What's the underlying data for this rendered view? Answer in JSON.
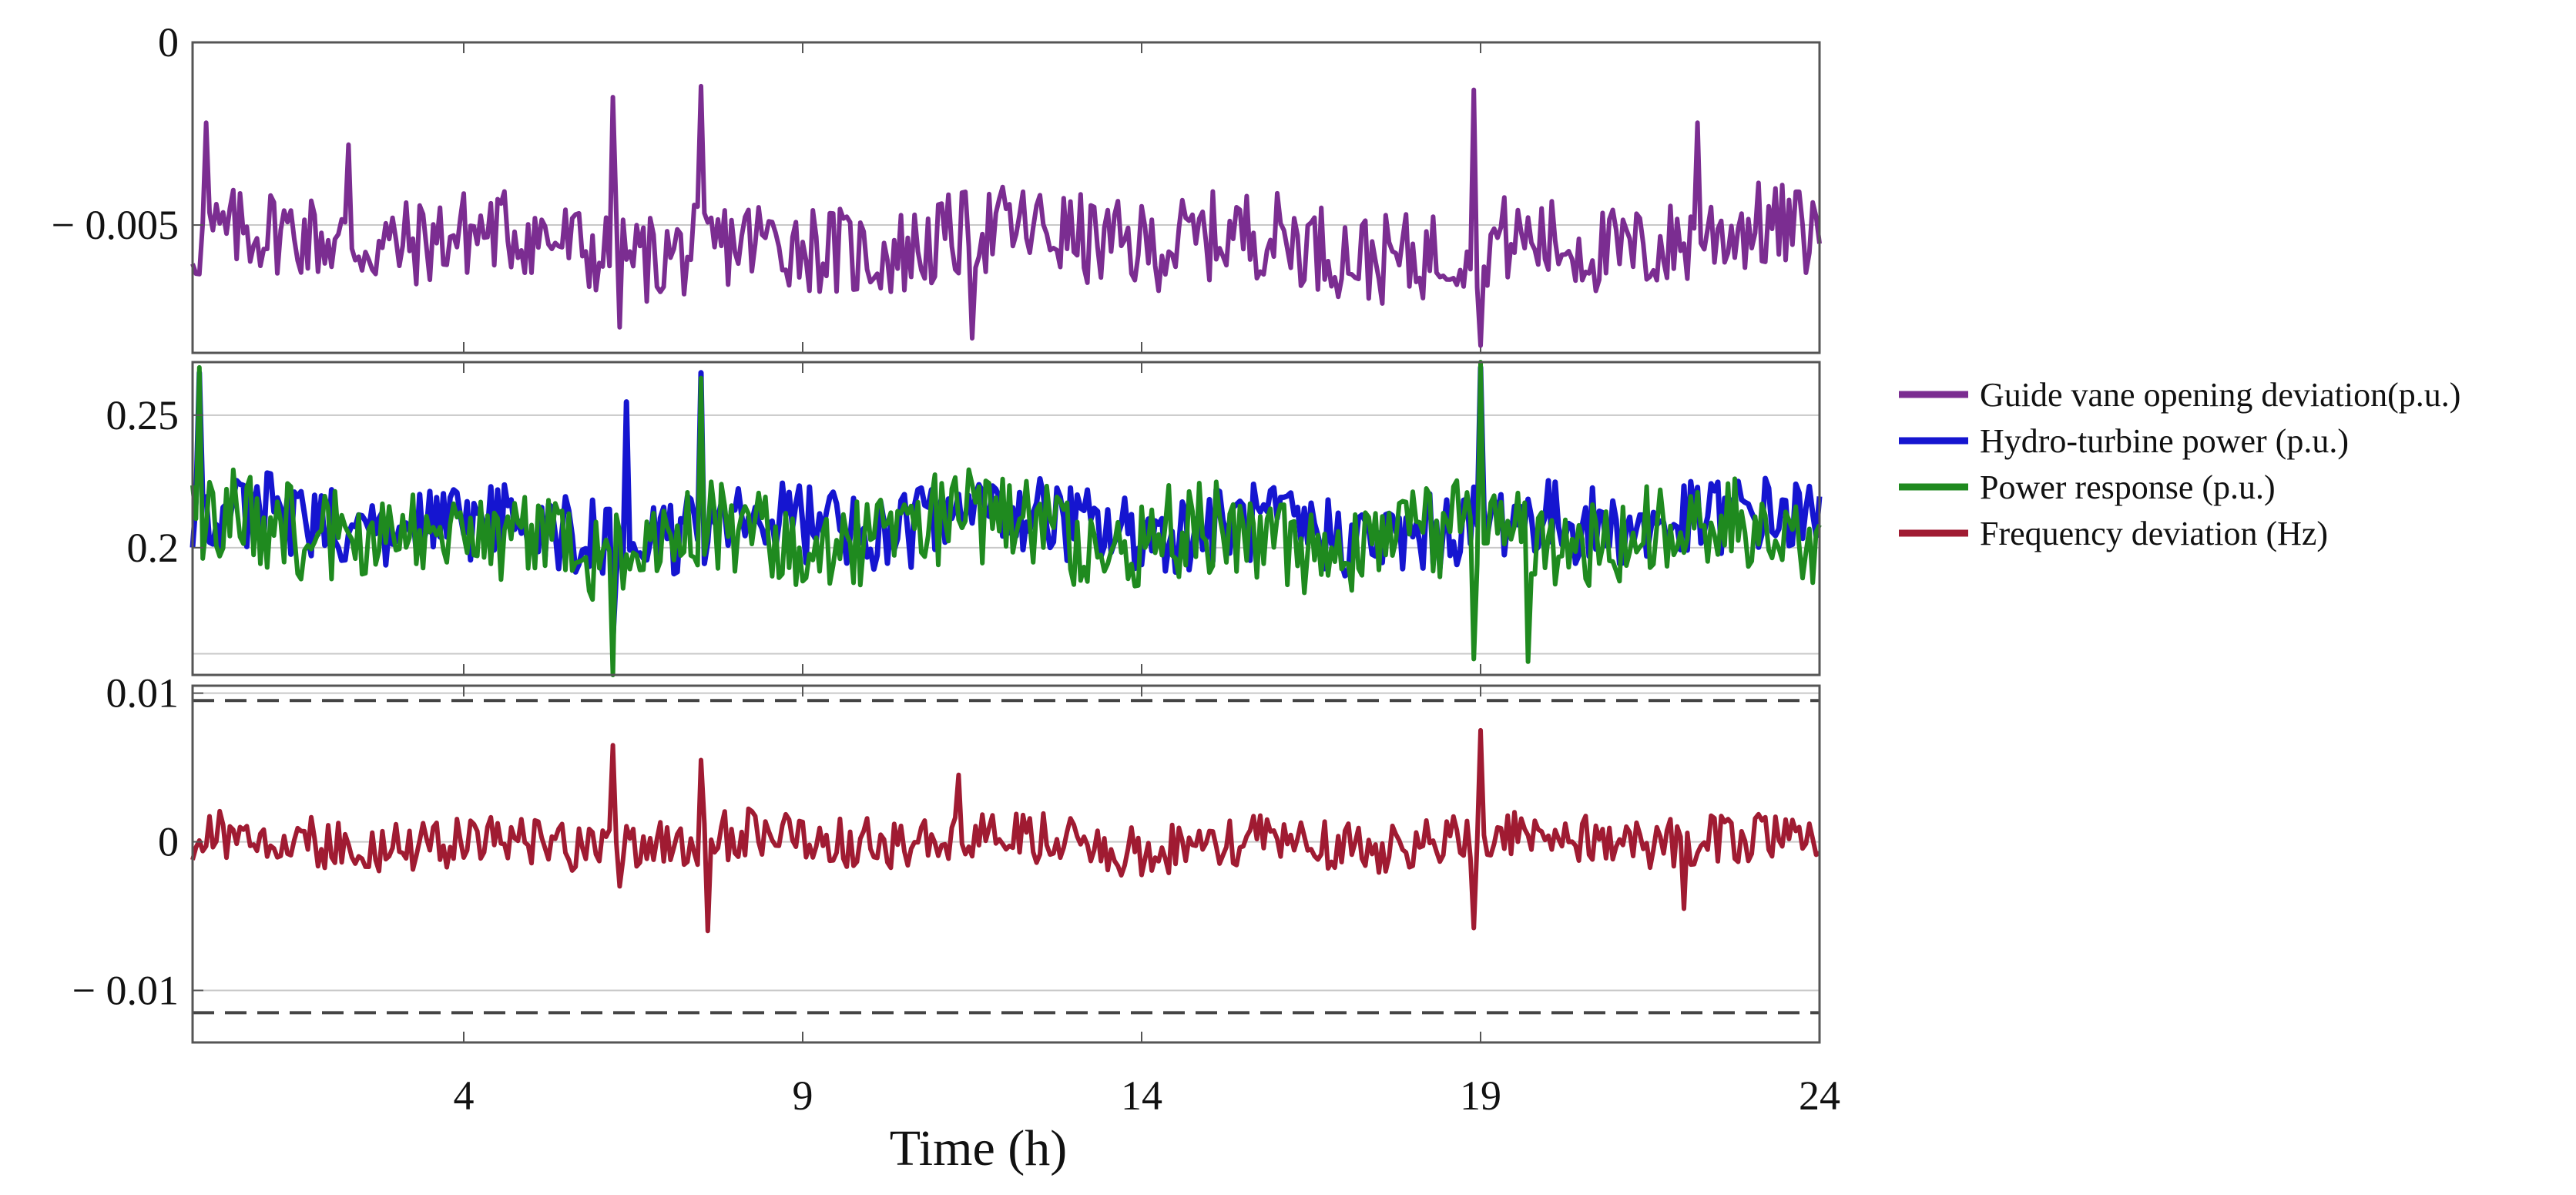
{
  "chart_data": {
    "type": "line",
    "xlabel": "Time (h)",
    "xlim": [
      0,
      24
    ],
    "x_ticks": [
      4,
      9,
      14,
      19,
      24
    ],
    "legend": {
      "placement": "right",
      "entries": [
        {
          "name": "Guide vane opening deviation(p.u.)",
          "color": "#7B2D91"
        },
        {
          "name": "Hydro-turbine power (p.u.)",
          "color": "#1515D0"
        },
        {
          "name": "Power response (p.u.)",
          "color": "#1F8A1F"
        },
        {
          "name": "Frequency deviation (Hz)",
          "color": "#A01B32"
        }
      ]
    },
    "panels": [
      {
        "id": "guide-vane",
        "ylim": [
          -0.0085,
          0.0
        ],
        "y_ticks": [
          {
            "value": 0,
            "label": "0"
          },
          {
            "value": -0.005,
            "label": "− 0.005"
          }
        ],
        "gridlines": [
          -0.005
        ],
        "series": [
          {
            "name": "Guide vane opening deviation(p.u.)",
            "color": "#7B2D91",
            "baseline": -0.0055,
            "spread": 0.0013,
            "spikes": [
              [
                0.2,
                -0.0022
              ],
              [
                2.3,
                -0.0028
              ],
              [
                6.2,
                -0.0015
              ],
              [
                6.3,
                -0.0078
              ],
              [
                7.5,
                -0.0012
              ],
              [
                11.5,
                -0.0081
              ],
              [
                18.9,
                -0.0013
              ],
              [
                19.0,
                -0.0083
              ],
              [
                22.2,
                -0.0022
              ]
            ]
          }
        ]
      },
      {
        "id": "power",
        "ylim": [
          0.152,
          0.27
        ],
        "y_ticks": [
          {
            "value": 0.25,
            "label": "0.25"
          },
          {
            "value": 0.2,
            "label": "0.2"
          }
        ],
        "gridlines": [
          0.25,
          0.2,
          0.16
        ],
        "series": [
          {
            "name": "Hydro-turbine power (p.u.)",
            "color": "#1515D0",
            "baseline": 0.208,
            "spread": 0.016,
            "spikes": [
              [
                0.1,
                0.266
              ],
              [
                6.4,
                0.255
              ],
              [
                7.5,
                0.266
              ],
              [
                19.0,
                0.268
              ],
              [
                6.2,
                0.165
              ]
            ]
          },
          {
            "name": "Power response (p.u.)",
            "color": "#1F8A1F",
            "baseline": 0.205,
            "spread": 0.019,
            "spikes": [
              [
                0.1,
                0.268
              ],
              [
                6.2,
                0.152
              ],
              [
                7.5,
                0.264
              ],
              [
                18.9,
                0.158
              ],
              [
                19.0,
                0.27
              ],
              [
                19.7,
                0.157
              ]
            ]
          }
        ]
      },
      {
        "id": "frequency",
        "ylim": [
          -0.0135,
          0.0105
        ],
        "y_ticks": [
          {
            "value": 0.01,
            "label": "0.01"
          },
          {
            "value": 0,
            "label": "0"
          },
          {
            "value": -0.01,
            "label": "− 0.01"
          }
        ],
        "gridlines": [
          0.01,
          0,
          -0.01
        ],
        "limit_lines": [
          0.0095,
          -0.0115
        ],
        "series": [
          {
            "name": "Frequency deviation (Hz)",
            "color": "#A01B32",
            "baseline": 0.0,
            "spread": 0.0018,
            "spikes": [
              [
                6.2,
                0.0065
              ],
              [
                6.3,
                -0.003
              ],
              [
                7.5,
                0.0055
              ],
              [
                7.6,
                -0.006
              ],
              [
                11.3,
                0.0045
              ],
              [
                19.0,
                0.0075
              ],
              [
                18.9,
                -0.0058
              ],
              [
                22.0,
                -0.0045
              ]
            ]
          }
        ]
      }
    ]
  }
}
